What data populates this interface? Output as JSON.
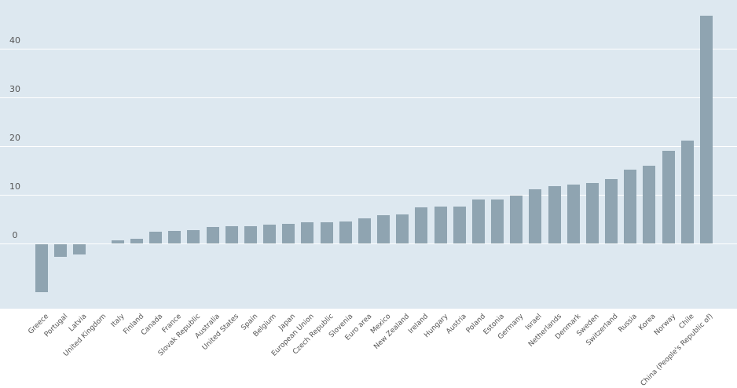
{
  "chart_data": {
    "type": "bar",
    "title": "",
    "xlabel": "",
    "ylabel": "",
    "ylim": [
      -13,
      50
    ],
    "grid": true,
    "yticks": [
      0,
      10,
      20,
      30,
      40
    ],
    "bar_color": "#8fa4b1",
    "background_color": "#dde8f0",
    "categories": [
      "Greece",
      "Portugal",
      "Latvia",
      "United Kingdom",
      "Italy",
      "Finland",
      "Canada",
      "France",
      "Slovak Republic",
      "Australia",
      "United States",
      "Spain",
      "Belgium",
      "Japan",
      "European Union",
      "Czech Republic",
      "Slovenia",
      "Euro area",
      "Mexico",
      "New Zealand",
      "Ireland",
      "Hungary",
      "Austria",
      "Poland",
      "Estonia",
      "Germany",
      "Israel",
      "Netherlands",
      "Denmark",
      "Sweden",
      "Switzerland",
      "Russia",
      "Korea",
      "Norway",
      "Chile",
      "China (People's Republic of)"
    ],
    "values": [
      -9.8,
      -2.6,
      -2.1,
      0.0,
      0.7,
      0.9,
      2.4,
      2.6,
      2.7,
      3.4,
      3.5,
      3.5,
      3.9,
      4.0,
      4.4,
      4.3,
      4.5,
      5.2,
      5.8,
      6.0,
      7.4,
      7.6,
      7.6,
      9.0,
      9.0,
      9.8,
      11.1,
      11.8,
      12.1,
      12.4,
      13.3,
      15.1,
      15.9,
      19.0,
      21.1,
      46.8
    ]
  }
}
